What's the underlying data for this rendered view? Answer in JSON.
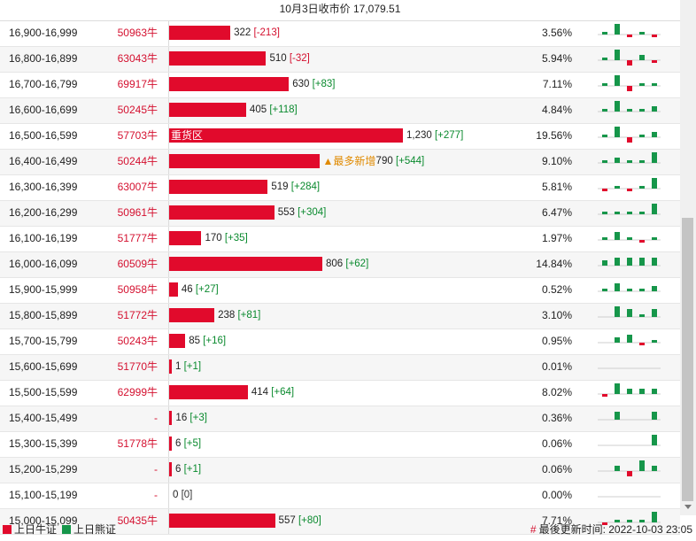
{
  "header": {
    "title": "10月3日收市价 17,079.51"
  },
  "colors": {
    "bull": "#e10a2c",
    "bear": "#16964a",
    "line": "#cfcfcf"
  },
  "chart_data": {
    "type": "bar",
    "title": "10月3日收市价 17,079.51",
    "xlim": [
      0,
      1300
    ],
    "rows": [
      {
        "range": "16,900-16,999",
        "code": "50963牛",
        "value": 322,
        "change": "[-213]",
        "pct": "3.56%",
        "spark": [
          1,
          4,
          -1,
          1,
          -1
        ]
      },
      {
        "range": "16,800-16,899",
        "code": "63043牛",
        "value": 510,
        "change": "[-32]",
        "pct": "5.94%",
        "spark": [
          1,
          4,
          -2,
          2,
          -1
        ]
      },
      {
        "range": "16,700-16,799",
        "code": "69917牛",
        "value": 630,
        "change": "[+83]",
        "pct": "7.11%",
        "spark": [
          1,
          4,
          -2,
          1,
          1
        ]
      },
      {
        "range": "16,600-16,699",
        "code": "50245牛",
        "value": 405,
        "change": "[+118]",
        "pct": "4.84%",
        "spark": [
          1,
          4,
          1,
          1,
          2
        ]
      },
      {
        "range": "16,500-16,599",
        "code": "57703牛",
        "value": 1230,
        "change": "[+277]",
        "pct": "19.56%",
        "note": "重货区",
        "spark": [
          1,
          4,
          -2,
          1,
          2
        ]
      },
      {
        "range": "16,400-16,499",
        "code": "50244牛",
        "value": 790,
        "change": "[+544]",
        "pct": "9.10%",
        "note": "▲最多新增",
        "spark": [
          1,
          2,
          1,
          1,
          4
        ]
      },
      {
        "range": "16,300-16,399",
        "code": "63007牛",
        "value": 519,
        "change": "[+284]",
        "pct": "5.81%",
        "spark": [
          -1,
          1,
          -1,
          1,
          4
        ]
      },
      {
        "range": "16,200-16,299",
        "code": "50961牛",
        "value": 553,
        "change": "[+304]",
        "pct": "6.47%",
        "spark": [
          1,
          1,
          1,
          1,
          4
        ]
      },
      {
        "range": "16,100-16,199",
        "code": "51777牛",
        "value": 170,
        "change": "[+35]",
        "pct": "1.97%",
        "spark": [
          1,
          3,
          1,
          -1,
          1
        ]
      },
      {
        "range": "16,000-16,099",
        "code": "60509牛",
        "value": 806,
        "change": "[+62]",
        "pct": "14.84%",
        "spark": [
          2,
          3,
          3,
          3,
          3
        ]
      },
      {
        "range": "15,900-15,999",
        "code": "50958牛",
        "value": 46,
        "change": "[+27]",
        "pct": "0.52%",
        "spark": [
          1,
          3,
          1,
          1,
          2
        ]
      },
      {
        "range": "15,800-15,899",
        "code": "51772牛",
        "value": 238,
        "change": "[+81]",
        "pct": "3.10%",
        "spark": [
          0,
          4,
          3,
          1,
          3
        ]
      },
      {
        "range": "15,700-15,799",
        "code": "50243牛",
        "value": 85,
        "change": "[+16]",
        "pct": "0.95%",
        "spark": [
          0,
          2,
          3,
          -1,
          1
        ]
      },
      {
        "range": "15,600-15,699",
        "code": "51770牛",
        "value": 1,
        "change": "[+1]",
        "pct": "0.01%",
        "spark": [
          0,
          0,
          0,
          0,
          0
        ]
      },
      {
        "range": "15,500-15,599",
        "code": "62999牛",
        "value": 414,
        "change": "[+64]",
        "pct": "8.02%",
        "spark": [
          -1,
          4,
          2,
          2,
          2
        ]
      },
      {
        "range": "15,400-15,499",
        "code": "-",
        "value": 16,
        "change": "[+3]",
        "pct": "0.36%",
        "spark": [
          0,
          3,
          0,
          0,
          3
        ]
      },
      {
        "range": "15,300-15,399",
        "code": "51778牛",
        "value": 6,
        "change": "[+5]",
        "pct": "0.06%",
        "spark": [
          0,
          0,
          0,
          0,
          4
        ]
      },
      {
        "range": "15,200-15,299",
        "code": "-",
        "value": 6,
        "change": "[+1]",
        "pct": "0.06%",
        "spark": [
          0,
          2,
          -2,
          4,
          2
        ]
      },
      {
        "range": "15,100-15,199",
        "code": "-",
        "value": 0,
        "change": "[0]",
        "pct": "0.00%",
        "spark": [
          0,
          0,
          0,
          0,
          0
        ]
      },
      {
        "range": "15,000-15,099",
        "code": "50435牛",
        "value": 557,
        "change": "[+80]",
        "pct": "7.71%",
        "spark": [
          -1,
          1,
          1,
          1,
          4
        ]
      }
    ]
  },
  "footer": {
    "legend_bull": "上日牛证",
    "legend_bear": "上日熊证",
    "hash": "#",
    "updated": "最後更新时间: 2022-10-03 23:05"
  }
}
